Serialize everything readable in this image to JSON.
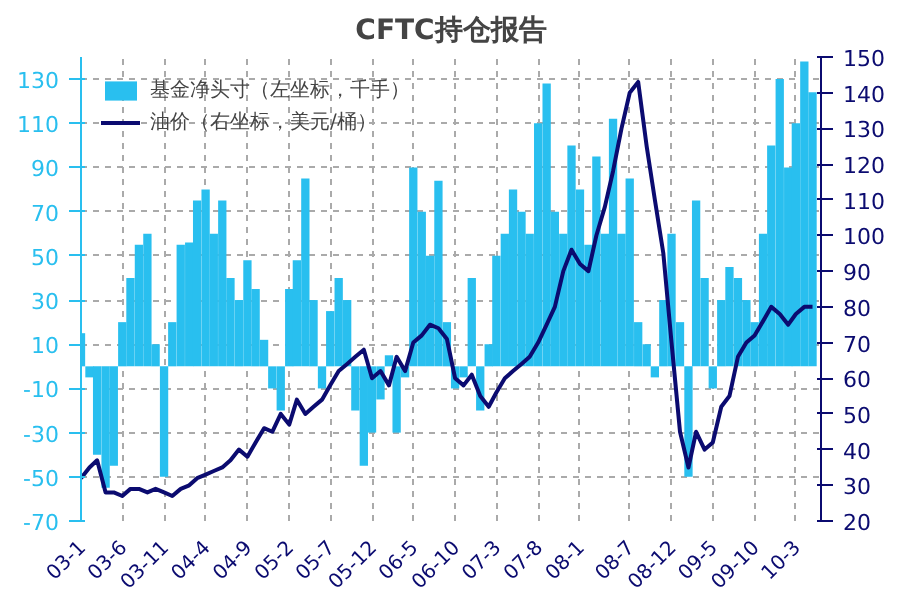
{
  "chart_data": {
    "type": "bar",
    "title": "CFTC持仓报告",
    "x": [
      "2003-01",
      "2003-02",
      "2003-03",
      "2003-04",
      "2003-05",
      "2003-06",
      "2003-07",
      "2003-08",
      "2003-09",
      "2003-10",
      "2003-11",
      "2003-12",
      "2004-01",
      "2004-02",
      "2004-03",
      "2004-04",
      "2004-05",
      "2004-06",
      "2004-07",
      "2004-08",
      "2004-09",
      "2004-10",
      "2004-11",
      "2004-12",
      "2005-01",
      "2005-02",
      "2005-03",
      "2005-04",
      "2005-05",
      "2005-06",
      "2005-07",
      "2005-08",
      "2005-09",
      "2005-10",
      "2005-11",
      "2005-12",
      "2006-01",
      "2006-02",
      "2006-03",
      "2006-04",
      "2006-05",
      "2006-06",
      "2006-07",
      "2006-08",
      "2006-09",
      "2006-10",
      "2006-11",
      "2006-12",
      "2007-01",
      "2007-02",
      "2007-03",
      "2007-04",
      "2007-05",
      "2007-06",
      "2007-07",
      "2007-08",
      "2007-09",
      "2007-10",
      "2007-11",
      "2007-12",
      "2008-01",
      "2008-02",
      "2008-03",
      "2008-04",
      "2008-05",
      "2008-06",
      "2008-07",
      "2008-08",
      "2008-09",
      "2008-10",
      "2008-11",
      "2008-12",
      "2009-01",
      "2009-02",
      "2009-03",
      "2009-04",
      "2009-05",
      "2009-06",
      "2009-07",
      "2009-08",
      "2009-09",
      "2009-10",
      "2009-11",
      "2009-12",
      "2010-01",
      "2010-02",
      "2010-03",
      "2010-04",
      "2010-05"
    ],
    "series": [
      {
        "name": "基金净头寸（左坐标，千手）",
        "color": "#29bfef",
        "values": [
          15,
          -5,
          -40,
          -55,
          -45,
          20,
          40,
          55,
          60,
          10,
          -50,
          20,
          55,
          56,
          75,
          80,
          60,
          75,
          40,
          30,
          48,
          35,
          12,
          -10,
          -20,
          35,
          48,
          85,
          30,
          -10,
          25,
          40,
          30,
          -20,
          -45,
          -30,
          -15,
          5,
          -30,
          -5,
          90,
          70,
          50,
          84,
          20,
          -10,
          -5,
          40,
          -20,
          10,
          50,
          60,
          80,
          70,
          60,
          110,
          128,
          70,
          60,
          100,
          80,
          55,
          95,
          60,
          112,
          60,
          85,
          20,
          10,
          -5,
          30,
          60,
          20,
          -50,
          75,
          40,
          -10,
          30,
          45,
          40,
          30,
          20,
          60,
          100,
          130,
          90,
          110,
          138,
          124
        ]
      },
      {
        "name": "油价（右坐标，美元/桶）",
        "type": "line",
        "axis": "y2",
        "color": "#0b0b70",
        "values": [
          32,
          35,
          37,
          28,
          28,
          27,
          29,
          29,
          28,
          29,
          28,
          27,
          29,
          30,
          32,
          33,
          34,
          35,
          37,
          40,
          38,
          42,
          46,
          45,
          50,
          47,
          54,
          50,
          52,
          54,
          58,
          62,
          64,
          66,
          68,
          60,
          62,
          58,
          66,
          62,
          70,
          72,
          75,
          74,
          71,
          60,
          58,
          61,
          55,
          52,
          56,
          60,
          62,
          64,
          66,
          70,
          75,
          80,
          90,
          96,
          92,
          90,
          100,
          108,
          118,
          130,
          140,
          143,
          125,
          110,
          95,
          70,
          45,
          35,
          45,
          40,
          42,
          52,
          55,
          66,
          70,
          72,
          76,
          80,
          78,
          75,
          78,
          80,
          80
        ]
      }
    ],
    "xlim": [
      "2003-01",
      "2010-06"
    ],
    "xticks": [
      {
        "value": "2003-01",
        "label": "03-1"
      },
      {
        "value": "2003-06",
        "label": "03-6"
      },
      {
        "value": "2003-11",
        "label": "03-11"
      },
      {
        "value": "2004-04",
        "label": "04-4"
      },
      {
        "value": "2004-09",
        "label": "04-9"
      },
      {
        "value": "2005-02",
        "label": "05-2"
      },
      {
        "value": "2005-07",
        "label": "05-7"
      },
      {
        "value": "2005-12",
        "label": "05-12"
      },
      {
        "value": "2006-05",
        "label": "06-5"
      },
      {
        "value": "2006-10",
        "label": "06-10"
      },
      {
        "value": "2007-03",
        "label": "07-3"
      },
      {
        "value": "2007-08",
        "label": "07-8"
      },
      {
        "value": "2008-01",
        "label": "08-1"
      },
      {
        "value": "2008-07",
        "label": "08-7"
      },
      {
        "value": "2008-12",
        "label": "08-12"
      },
      {
        "value": "2009-05",
        "label": "09-5"
      },
      {
        "value": "2009-10",
        "label": "09-10"
      },
      {
        "value": "2010-03",
        "label": "10-3"
      }
    ],
    "ylim": [
      -70,
      140
    ],
    "yticks": [
      -70,
      -50,
      -30,
      -10,
      10,
      30,
      50,
      70,
      90,
      110,
      130
    ],
    "y2lim": [
      20,
      150
    ],
    "y2ticks": [
      20,
      30,
      40,
      50,
      60,
      70,
      80,
      90,
      100,
      110,
      120,
      130,
      140,
      150
    ],
    "grid": true,
    "legend": "top left"
  }
}
